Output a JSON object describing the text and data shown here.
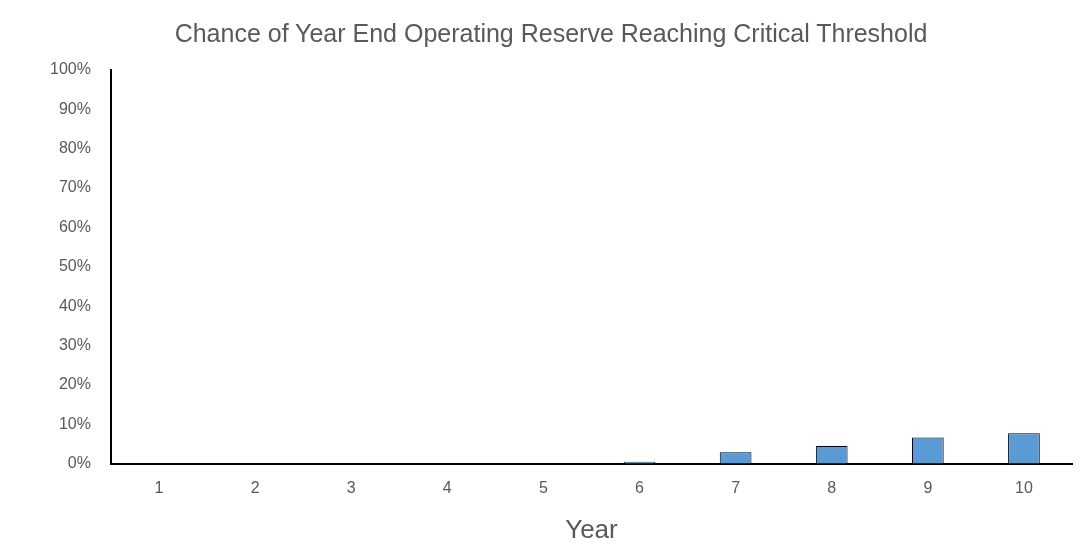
{
  "chart_data": {
    "type": "bar",
    "title": "Chance of Year End Operating Reserve Reaching Critical Threshold",
    "xlabel": "Year",
    "categories": [
      "1",
      "2",
      "3",
      "4",
      "5",
      "6",
      "7",
      "8",
      "9",
      "10"
    ],
    "values": [
      0,
      0,
      0,
      0,
      0,
      0.5,
      2.9,
      4.5,
      6.6,
      7.7
    ],
    "color": "#5b9bd5",
    "ylim": [
      0,
      100
    ],
    "yticks": [
      {
        "value": 0,
        "label": "0%"
      },
      {
        "value": 10,
        "label": "10%"
      },
      {
        "value": 20,
        "label": "20%"
      },
      {
        "value": 30,
        "label": "30%"
      },
      {
        "value": 40,
        "label": "40%"
      },
      {
        "value": 50,
        "label": "50%"
      },
      {
        "value": 60,
        "label": "60%"
      },
      {
        "value": 70,
        "label": "70%"
      },
      {
        "value": 80,
        "label": "80%"
      },
      {
        "value": 90,
        "label": "90%"
      },
      {
        "value": 100,
        "label": "100%"
      }
    ],
    "grid": false,
    "legend": false
  }
}
